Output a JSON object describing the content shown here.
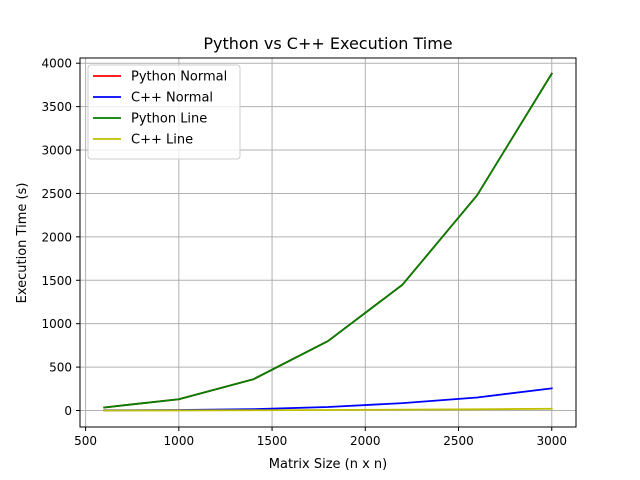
{
  "chart_data": {
    "type": "line",
    "title": "Python vs C++ Execution Time",
    "xlabel": "Matrix Size (n x n)",
    "ylabel": "Execution Time (s)",
    "xlim": [
      470,
      3130
    ],
    "ylim": [
      -190,
      4060
    ],
    "xticks": [
      500,
      1000,
      1500,
      2000,
      2500,
      3000
    ],
    "yticks": [
      0,
      500,
      1000,
      1500,
      2000,
      2500,
      3000,
      3500,
      4000
    ],
    "grid": true,
    "legend_position": "top-left",
    "x": [
      600,
      1000,
      1400,
      1800,
      2200,
      2600,
      3000
    ],
    "series": [
      {
        "name": "Python Normal",
        "color": "#ff0000",
        "values": [
          35,
          130,
          360,
          800,
          1450,
          2480,
          3880
        ]
      },
      {
        "name": "C++ Normal",
        "color": "#0000ff",
        "values": [
          2,
          5,
          15,
          40,
          85,
          150,
          255
        ]
      },
      {
        "name": "Python Line",
        "color": "#007f00",
        "values": [
          35,
          130,
          360,
          800,
          1450,
          2480,
          3880
        ]
      },
      {
        "name": "C++ Line",
        "color": "#bfbf00",
        "values": [
          0,
          1,
          3,
          6,
          10,
          14,
          20
        ]
      }
    ]
  }
}
